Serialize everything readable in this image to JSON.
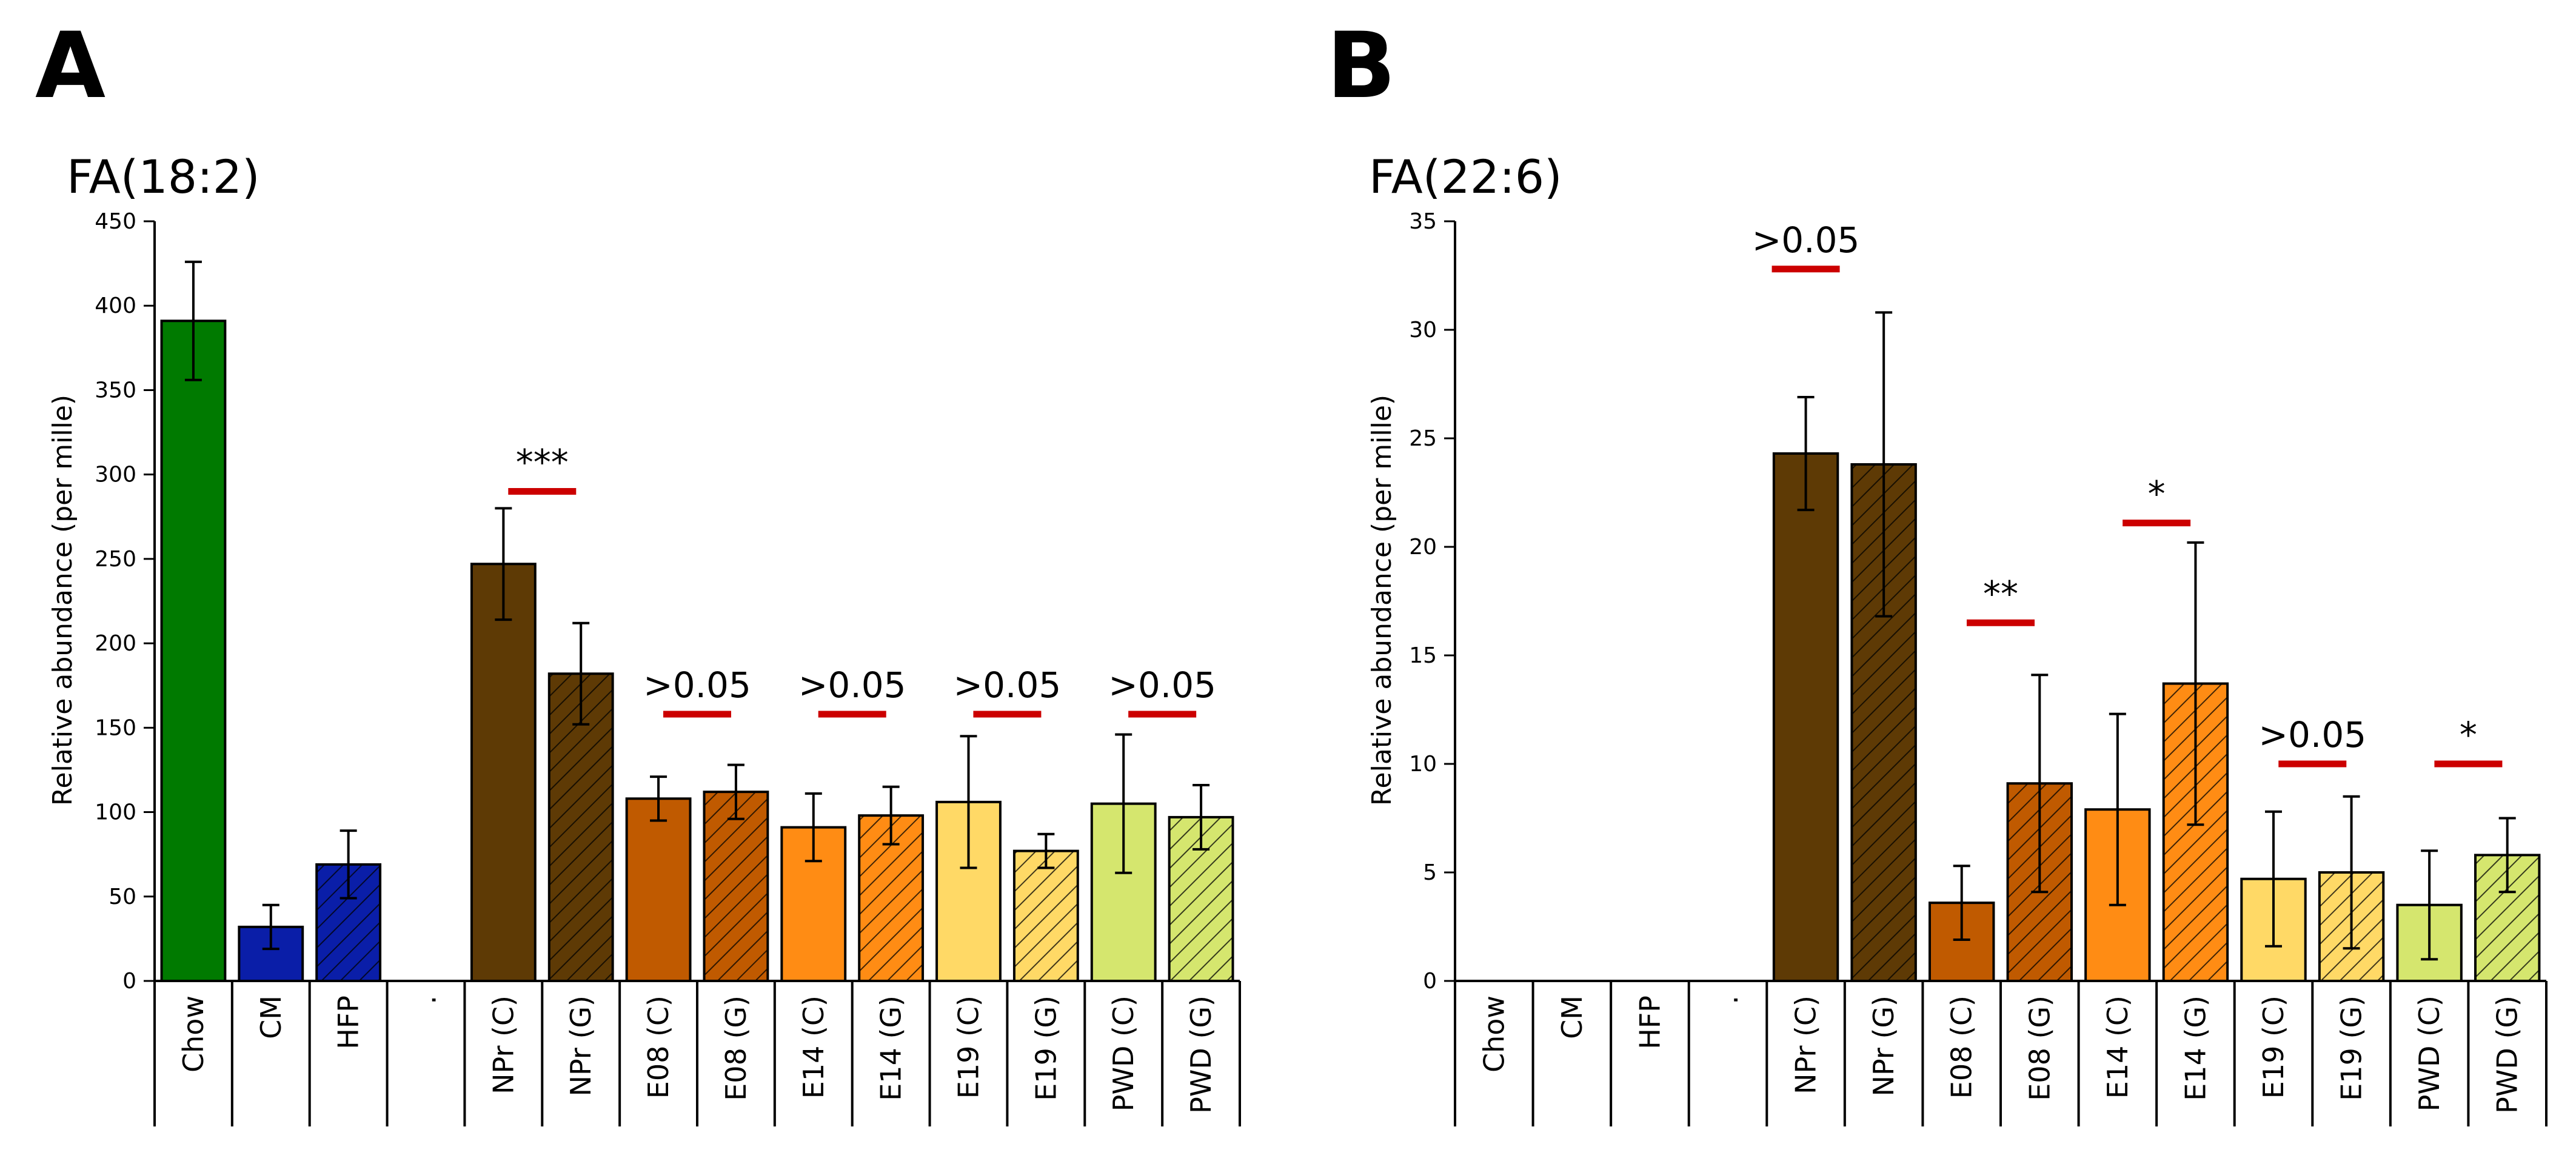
{
  "colors": {
    "chow": "#007a00",
    "cm": "#0a1ea8",
    "hfp": "#0a1ea8",
    "npr": "#5e3a05",
    "e08": "#c05a00",
    "e14": "#ff8c14",
    "e19": "#ffd966",
    "pwd": "#d5e66e",
    "sig_line": "#cc0000"
  },
  "chart_data": [
    {
      "type": "bar",
      "panel": "A",
      "title": "FA(18:2)",
      "xlabel": "",
      "ylabel": "Relative abundance (per mille)",
      "ylim": [
        0,
        450
      ],
      "yticks": [
        0,
        50,
        100,
        150,
        200,
        250,
        300,
        350,
        400,
        450
      ],
      "categories": [
        "Chow",
        "CM",
        "HFP",
        ".",
        "NPr (C)",
        "NPr (G)",
        "E08 (C)",
        "E08 (G)",
        "E14 (C)",
        "E14 (G)",
        "E19 (C)",
        "E19 (G)",
        "PWD (C)",
        "PWD (G)"
      ],
      "values": [
        391,
        32,
        69,
        0,
        247,
        182,
        108,
        112,
        91,
        98,
        106,
        77,
        105,
        97
      ],
      "errors": [
        35,
        13,
        20,
        0,
        33,
        30,
        13,
        16,
        20,
        17,
        39,
        10,
        41,
        19
      ],
      "hatched": [
        false,
        false,
        true,
        false,
        false,
        true,
        false,
        true,
        false,
        true,
        false,
        true,
        false,
        true
      ],
      "color_keys": [
        "chow",
        "cm",
        "hfp",
        "",
        "npr",
        "npr",
        "e08",
        "e08",
        "e14",
        "e14",
        "e19",
        "e19",
        "pwd",
        "pwd"
      ],
      "significance": [
        {
          "pair": [
            4,
            5
          ],
          "label": "***",
          "y": 290
        },
        {
          "pair": [
            6,
            7
          ],
          "label": ">0.05",
          "y": 158
        },
        {
          "pair": [
            8,
            9
          ],
          "label": ">0.05",
          "y": 158
        },
        {
          "pair": [
            10,
            11
          ],
          "label": ">0.05",
          "y": 158
        },
        {
          "pair": [
            12,
            13
          ],
          "label": ">0.05",
          "y": 158
        }
      ]
    },
    {
      "type": "bar",
      "panel": "B",
      "title": "FA(22:6)",
      "xlabel": "",
      "ylabel": "Relative abundance (per mille)",
      "ylim": [
        0,
        35
      ],
      "yticks": [
        0,
        5,
        10,
        15,
        20,
        25,
        30,
        35
      ],
      "categories": [
        "Chow",
        "CM",
        "HFP",
        ".",
        "NPr (C)",
        "NPr (G)",
        "E08 (C)",
        "E08 (G)",
        "E14 (C)",
        "E14 (G)",
        "E19 (C)",
        "E19 (G)",
        "PWD (C)",
        "PWD (G)"
      ],
      "values": [
        0,
        0,
        0,
        0,
        24.3,
        23.8,
        3.6,
        9.1,
        7.9,
        13.7,
        4.7,
        5.0,
        3.5,
        5.8
      ],
      "errors": [
        0,
        0,
        0,
        0,
        2.6,
        7.0,
        1.7,
        5.0,
        4.4,
        6.5,
        3.1,
        3.5,
        2.5,
        1.7
      ],
      "hatched": [
        false,
        false,
        true,
        false,
        false,
        true,
        false,
        true,
        false,
        true,
        false,
        true,
        false,
        true
      ],
      "color_keys": [
        "chow",
        "cm",
        "hfp",
        "",
        "npr",
        "npr",
        "e08",
        "e08",
        "e14",
        "e14",
        "e19",
        "e19",
        "pwd",
        "pwd"
      ],
      "significance": [
        {
          "pair": [
            4,
            4
          ],
          "label": ">0.05",
          "y": 32.8
        },
        {
          "pair": [
            6,
            7
          ],
          "label": "**",
          "y": 16.5
        },
        {
          "pair": [
            8,
            9
          ],
          "label": "*",
          "y": 21.1
        },
        {
          "pair": [
            10,
            11
          ],
          "label": ">0.05",
          "y": 10.0
        },
        {
          "pair": [
            12,
            13
          ],
          "label": "*",
          "y": 10.0
        }
      ]
    }
  ]
}
